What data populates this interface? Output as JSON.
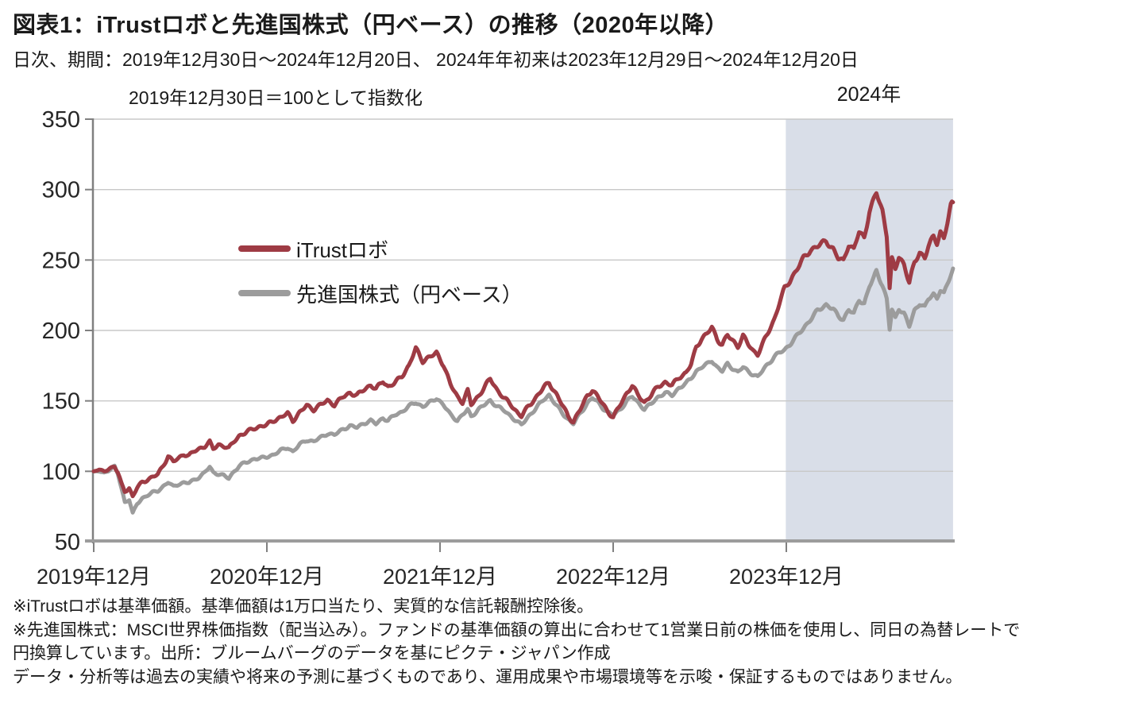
{
  "header": {
    "title": "図表1：iTrustロボと先進国株式（円ベース）の推移（2020年以降）",
    "subtitle": "日次、期間：2019年12月30日～2024年12月20日、 2024年年初来は2023年12月29日～2024年12月20日",
    "index_note": "2019年12月30日＝100として指数化",
    "highlight_label": "2024年"
  },
  "footnotes": [
    "※iTrustロボは基準価額。基準価額は1万口当たり、実質的な信託報酬控除後。",
    "※先進国株式：MSCI世界株価指数（配当込み）。ファンドの基準価額の算出に合わせて1営業日前の株価を使用し、同日の為替レートで",
    "円換算しています。出所：ブルームバーグのデータを基にピクテ・ジャパン作成",
    "データ・分析等は過去の実績や将来の予測に基づくものであり、運用成果や市場環境等を示唆・保証するものではありません。"
  ],
  "colors": {
    "itrust_red": "#9E3B44",
    "world_gray": "#9C9C9C",
    "highlight": "#D9DEE8",
    "gridline": "#C8C8C8",
    "axis": "#808080",
    "x_axis": "#9C9C9C",
    "text": "#262626"
  },
  "chart_data": {
    "type": "line",
    "title": "図表1：iTrustロボと先進国株式（円ベース）の推移（2020年以降）",
    "subtitle": "日次、期間：2019年12月30日～2024年12月20日、2024年年初来は2023年12月29日～2024年12月20日",
    "index_note": "2019年12月30日＝100として指数化",
    "x_unit": "years_since_2019-12-30",
    "xlim": [
      0,
      4.963
    ],
    "ylim": [
      50,
      350
    ],
    "grid": true,
    "legend_position": "inside-left",
    "y_ticks": [
      50,
      100,
      150,
      200,
      250,
      300,
      350
    ],
    "x_ticks": [
      {
        "t": 0.0,
        "label": "2019年12月"
      },
      {
        "t": 1.0,
        "label": "2020年12月"
      },
      {
        "t": 2.0,
        "label": "2021年12月"
      },
      {
        "t": 3.0,
        "label": "2022年12月"
      },
      {
        "t": 4.0,
        "label": "2023年12月"
      }
    ],
    "highlight_region": {
      "t_start": 3.997,
      "t_end": 4.963,
      "label": "2024年"
    },
    "series": [
      {
        "name": "iTrustロボ",
        "color": "#9E3B44",
        "points": [
          [
            0,
            100
          ],
          [
            0.03,
            101
          ],
          [
            0.06,
            100
          ],
          [
            0.09,
            102
          ],
          [
            0.12,
            104
          ],
          [
            0.14,
            99
          ],
          [
            0.16,
            91
          ],
          [
            0.18,
            86
          ],
          [
            0.205,
            88
          ],
          [
            0.225,
            82
          ],
          [
            0.25,
            88
          ],
          [
            0.28,
            92
          ],
          [
            0.31,
            94
          ],
          [
            0.34,
            96
          ],
          [
            0.37,
            98
          ],
          [
            0.4,
            104
          ],
          [
            0.43,
            111
          ],
          [
            0.46,
            107
          ],
          [
            0.49,
            109
          ],
          [
            0.52,
            112
          ],
          [
            0.55,
            111
          ],
          [
            0.58,
            114
          ],
          [
            0.61,
            116
          ],
          [
            0.64,
            118
          ],
          [
            0.67,
            121
          ],
          [
            0.69,
            116
          ],
          [
            0.72,
            119
          ],
          [
            0.75,
            118
          ],
          [
            0.78,
            116
          ],
          [
            0.81,
            121
          ],
          [
            0.84,
            125
          ],
          [
            0.87,
            127
          ],
          [
            0.9,
            129
          ],
          [
            0.93,
            131
          ],
          [
            0.96,
            132
          ],
          [
            1.0,
            133
          ],
          [
            1.04,
            136
          ],
          [
            1.08,
            138
          ],
          [
            1.12,
            141
          ],
          [
            1.15,
            136
          ],
          [
            1.19,
            142
          ],
          [
            1.23,
            147
          ],
          [
            1.27,
            144
          ],
          [
            1.31,
            147
          ],
          [
            1.35,
            150
          ],
          [
            1.39,
            147
          ],
          [
            1.44,
            153
          ],
          [
            1.48,
            156
          ],
          [
            1.52,
            154
          ],
          [
            1.56,
            158
          ],
          [
            1.6,
            161
          ],
          [
            1.63,
            158
          ],
          [
            1.67,
            164
          ],
          [
            1.7,
            160
          ],
          [
            1.74,
            163
          ],
          [
            1.78,
            168
          ],
          [
            1.82,
            175
          ],
          [
            1.86,
            187
          ],
          [
            1.9,
            178
          ],
          [
            1.94,
            181
          ],
          [
            1.98,
            184
          ],
          [
            2.02,
            176
          ],
          [
            2.06,
            162
          ],
          [
            2.1,
            153
          ],
          [
            2.13,
            149
          ],
          [
            2.16,
            157
          ],
          [
            2.18,
            147
          ],
          [
            2.22,
            153
          ],
          [
            2.29,
            166
          ],
          [
            2.33,
            158
          ],
          [
            2.37,
            152
          ],
          [
            2.41,
            147
          ],
          [
            2.45,
            141
          ],
          [
            2.47,
            139
          ],
          [
            2.51,
            146
          ],
          [
            2.55,
            152
          ],
          [
            2.6,
            160
          ],
          [
            2.63,
            163
          ],
          [
            2.67,
            155
          ],
          [
            2.71,
            146
          ],
          [
            2.74,
            139
          ],
          [
            2.77,
            135
          ],
          [
            2.81,
            144
          ],
          [
            2.85,
            154
          ],
          [
            2.88,
            158
          ],
          [
            2.91,
            153
          ],
          [
            2.94,
            148
          ],
          [
            2.97,
            142
          ],
          [
            3.0,
            138
          ],
          [
            3.04,
            147
          ],
          [
            3.08,
            156
          ],
          [
            3.11,
            161
          ],
          [
            3.14,
            155
          ],
          [
            3.18,
            149
          ],
          [
            3.22,
            154
          ],
          [
            3.26,
            160
          ],
          [
            3.3,
            163
          ],
          [
            3.34,
            161
          ],
          [
            3.38,
            167
          ],
          [
            3.42,
            170
          ],
          [
            3.45,
            176
          ],
          [
            3.48,
            188
          ],
          [
            3.51,
            194
          ],
          [
            3.54,
            197
          ],
          [
            3.57,
            202
          ],
          [
            3.6,
            194
          ],
          [
            3.63,
            190
          ],
          [
            3.66,
            197
          ],
          [
            3.69,
            193
          ],
          [
            3.72,
            189
          ],
          [
            3.75,
            196
          ],
          [
            3.78,
            190
          ],
          [
            3.81,
            185
          ],
          [
            3.835,
            183
          ],
          [
            3.87,
            192
          ],
          [
            3.9,
            200
          ],
          [
            3.93,
            208
          ],
          [
            3.96,
            220
          ],
          [
            3.99,
            230
          ],
          [
            4.02,
            235
          ],
          [
            4.06,
            243
          ],
          [
            4.1,
            251
          ],
          [
            4.14,
            257
          ],
          [
            4.18,
            260
          ],
          [
            4.23,
            264
          ],
          [
            4.27,
            258
          ],
          [
            4.3,
            251
          ],
          [
            4.33,
            249
          ],
          [
            4.36,
            261
          ],
          [
            4.39,
            257
          ],
          [
            4.42,
            270
          ],
          [
            4.45,
            266
          ],
          [
            4.48,
            285
          ],
          [
            4.505,
            293
          ],
          [
            4.52,
            298
          ],
          [
            4.555,
            285
          ],
          [
            4.58,
            268
          ],
          [
            4.597,
            230
          ],
          [
            4.61,
            250
          ],
          [
            4.63,
            243
          ],
          [
            4.65,
            252
          ],
          [
            4.68,
            247
          ],
          [
            4.71,
            234
          ],
          [
            4.74,
            248
          ],
          [
            4.77,
            256
          ],
          [
            4.8,
            252
          ],
          [
            4.82,
            260
          ],
          [
            4.85,
            266
          ],
          [
            4.87,
            262
          ],
          [
            4.89,
            270
          ],
          [
            4.91,
            265
          ],
          [
            4.93,
            276
          ],
          [
            4.95,
            288
          ],
          [
            4.963,
            291
          ]
        ]
      },
      {
        "name": "先進国株式（円ベース）",
        "color": "#9C9C9C",
        "points": [
          [
            0,
            100
          ],
          [
            0.03,
            100
          ],
          [
            0.06,
            99
          ],
          [
            0.09,
            101
          ],
          [
            0.12,
            103
          ],
          [
            0.14,
            98
          ],
          [
            0.16,
            88
          ],
          [
            0.18,
            78
          ],
          [
            0.205,
            80
          ],
          [
            0.225,
            70
          ],
          [
            0.25,
            77
          ],
          [
            0.28,
            81
          ],
          [
            0.31,
            83
          ],
          [
            0.34,
            85
          ],
          [
            0.37,
            86
          ],
          [
            0.4,
            89
          ],
          [
            0.43,
            92
          ],
          [
            0.46,
            89
          ],
          [
            0.49,
            91
          ],
          [
            0.52,
            92
          ],
          [
            0.55,
            92
          ],
          [
            0.58,
            94
          ],
          [
            0.61,
            96
          ],
          [
            0.64,
            99
          ],
          [
            0.67,
            103
          ],
          [
            0.69,
            99
          ],
          [
            0.72,
            98
          ],
          [
            0.75,
            97
          ],
          [
            0.78,
            95
          ],
          [
            0.81,
            100
          ],
          [
            0.84,
            104
          ],
          [
            0.87,
            106
          ],
          [
            0.9,
            107
          ],
          [
            0.93,
            109
          ],
          [
            0.96,
            109
          ],
          [
            1.0,
            110
          ],
          [
            1.04,
            112
          ],
          [
            1.08,
            115
          ],
          [
            1.12,
            117
          ],
          [
            1.15,
            114
          ],
          [
            1.19,
            119
          ],
          [
            1.23,
            122
          ],
          [
            1.27,
            121
          ],
          [
            1.31,
            124
          ],
          [
            1.35,
            127
          ],
          [
            1.39,
            126
          ],
          [
            1.44,
            130
          ],
          [
            1.48,
            132
          ],
          [
            1.52,
            131
          ],
          [
            1.56,
            134
          ],
          [
            1.6,
            136
          ],
          [
            1.63,
            134
          ],
          [
            1.67,
            138
          ],
          [
            1.7,
            136
          ],
          [
            1.74,
            140
          ],
          [
            1.78,
            142
          ],
          [
            1.82,
            146
          ],
          [
            1.86,
            149
          ],
          [
            1.9,
            146
          ],
          [
            1.94,
            149
          ],
          [
            1.98,
            152
          ],
          [
            2.02,
            147
          ],
          [
            2.06,
            140
          ],
          [
            2.1,
            136
          ],
          [
            2.13,
            140
          ],
          [
            2.16,
            144
          ],
          [
            2.18,
            139
          ],
          [
            2.22,
            144
          ],
          [
            2.29,
            150
          ],
          [
            2.33,
            146
          ],
          [
            2.37,
            143
          ],
          [
            2.41,
            139
          ],
          [
            2.45,
            135
          ],
          [
            2.47,
            133
          ],
          [
            2.51,
            139
          ],
          [
            2.55,
            144
          ],
          [
            2.6,
            151
          ],
          [
            2.63,
            154
          ],
          [
            2.67,
            147
          ],
          [
            2.71,
            141
          ],
          [
            2.74,
            137
          ],
          [
            2.77,
            134
          ],
          [
            2.81,
            141
          ],
          [
            2.85,
            148
          ],
          [
            2.88,
            152
          ],
          [
            2.91,
            149
          ],
          [
            2.94,
            145
          ],
          [
            2.97,
            142
          ],
          [
            3.0,
            140
          ],
          [
            3.04,
            144
          ],
          [
            3.08,
            150
          ],
          [
            3.11,
            153
          ],
          [
            3.14,
            149
          ],
          [
            3.18,
            144
          ],
          [
            3.22,
            148
          ],
          [
            3.26,
            153
          ],
          [
            3.3,
            156
          ],
          [
            3.34,
            154
          ],
          [
            3.38,
            159
          ],
          [
            3.42,
            162
          ],
          [
            3.45,
            166
          ],
          [
            3.48,
            171
          ],
          [
            3.51,
            174
          ],
          [
            3.54,
            176
          ],
          [
            3.57,
            179
          ],
          [
            3.6,
            174
          ],
          [
            3.63,
            171
          ],
          [
            3.66,
            176
          ],
          [
            3.69,
            173
          ],
          [
            3.72,
            170
          ],
          [
            3.75,
            174
          ],
          [
            3.78,
            171
          ],
          [
            3.81,
            169
          ],
          [
            3.835,
            167
          ],
          [
            3.87,
            173
          ],
          [
            3.9,
            177
          ],
          [
            3.93,
            181
          ],
          [
            3.96,
            184
          ],
          [
            3.99,
            186
          ],
          [
            4.02,
            190
          ],
          [
            4.06,
            196
          ],
          [
            4.1,
            202
          ],
          [
            4.14,
            208
          ],
          [
            4.18,
            214
          ],
          [
            4.23,
            218
          ],
          [
            4.27,
            215
          ],
          [
            4.3,
            210
          ],
          [
            4.33,
            208
          ],
          [
            4.36,
            215
          ],
          [
            4.39,
            212
          ],
          [
            4.42,
            222
          ],
          [
            4.45,
            219
          ],
          [
            4.48,
            231
          ],
          [
            4.505,
            237
          ],
          [
            4.52,
            242
          ],
          [
            4.555,
            232
          ],
          [
            4.58,
            222
          ],
          [
            4.597,
            201
          ],
          [
            4.61,
            215
          ],
          [
            4.63,
            209
          ],
          [
            4.65,
            216
          ],
          [
            4.68,
            212
          ],
          [
            4.71,
            203
          ],
          [
            4.74,
            214
          ],
          [
            4.77,
            219
          ],
          [
            4.8,
            216
          ],
          [
            4.82,
            222
          ],
          [
            4.85,
            226
          ],
          [
            4.87,
            223
          ],
          [
            4.89,
            229
          ],
          [
            4.91,
            226
          ],
          [
            4.93,
            233
          ],
          [
            4.95,
            240
          ],
          [
            4.963,
            244
          ]
        ]
      }
    ]
  }
}
